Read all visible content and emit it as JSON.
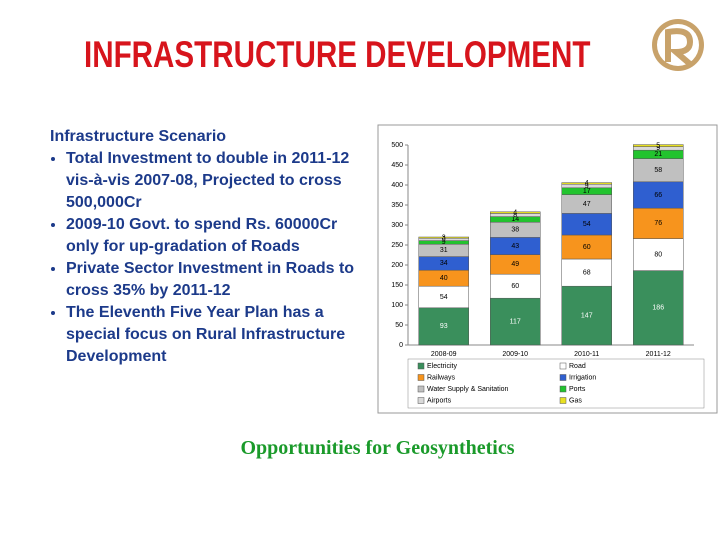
{
  "title": "INFRASTRUCTURE DEVELOPMENT",
  "heading": "Infrastructure Scenario",
  "bullets": [
    "Total Investment to double in 2011-12 vis-à-vis 2007-08, Projected to cross 500,000Cr",
    "2009-10 Govt. to spend Rs. 60000Cr only for up-gradation of Roads",
    "Private Sector Investment in Roads to cross 35% by 2011-12",
    "The Eleventh Five Year Plan has a special focus on Rural Infrastructure Development"
  ],
  "footer": "Opportunities for Geosynthetics",
  "chart_data": {
    "type": "stacked_bar",
    "categories": [
      "2008-09",
      "2009-10",
      "2010-11",
      "2011-12"
    ],
    "series": [
      {
        "name": "Electricity",
        "color": "#3a8f5c",
        "values": [
          93,
          117,
          147,
          186
        ]
      },
      {
        "name": "Road",
        "color": "#ffffff",
        "values": [
          54,
          60,
          68,
          80
        ]
      },
      {
        "name": "Railways",
        "color": "#f7941d",
        "values": [
          40,
          49,
          60,
          76
        ]
      },
      {
        "name": "Irrigation",
        "color": "#2f5fd0",
        "values": [
          34,
          43,
          54,
          66
        ]
      },
      {
        "name": "Water Supply & Sanitation",
        "color": "#c0c0c0",
        "values": [
          31,
          38,
          47,
          58
        ]
      },
      {
        "name": "Ports",
        "color": "#22c32e",
        "values": [
          9,
          14,
          17,
          21
        ]
      },
      {
        "name": "Airports",
        "color": "#d9d9d9",
        "values": [
          6,
          8,
          9,
          9
        ]
      },
      {
        "name": "Gas",
        "color": "#e8e020",
        "values": [
          3,
          4,
          4,
          5
        ]
      }
    ],
    "ylim": [
      0,
      500
    ],
    "yticks": [
      0,
      50,
      100,
      150,
      200,
      250,
      300,
      350,
      400,
      450,
      500
    ],
    "grid": false
  }
}
